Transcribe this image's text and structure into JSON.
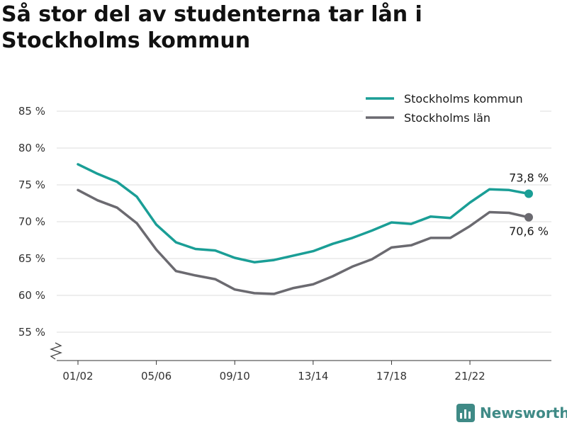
{
  "chart_data": {
    "type": "line",
    "title": "Så stor del av studenterna tar lån i Stockholms kommun",
    "xlabel": "",
    "ylabel": "",
    "ylim": [
      52,
      87
    ],
    "y_ticks": [
      55,
      60,
      65,
      70,
      75,
      80,
      85
    ],
    "y_tick_labels": [
      "55 %",
      "60 %",
      "65 %",
      "70 %",
      "75 %",
      "80 %",
      "85 %"
    ],
    "y_axis_break": true,
    "x_ticks": [
      "01/02",
      "05/06",
      "09/10",
      "13/14",
      "17/18",
      "21/22"
    ],
    "categories": [
      "01/02",
      "02/03",
      "03/04",
      "04/05",
      "05/06",
      "06/07",
      "07/08",
      "08/09",
      "09/10",
      "10/11",
      "11/12",
      "12/13",
      "13/14",
      "14/15",
      "15/16",
      "16/17",
      "17/18",
      "18/19",
      "19/20",
      "20/21",
      "21/22",
      "22/23",
      "23/24",
      "24/25"
    ],
    "grid": true,
    "legend_position": "top-right",
    "series": [
      {
        "name": "Stockholms kommun",
        "color": "#1a9e96",
        "values": [
          77.8,
          76.5,
          75.4,
          73.4,
          69.6,
          67.2,
          66.3,
          66.1,
          65.1,
          64.5,
          64.8,
          65.4,
          66.0,
          67.0,
          67.8,
          68.8,
          69.9,
          69.7,
          70.7,
          70.5,
          72.6,
          74.4,
          74.3,
          73.8
        ],
        "end_label": "73,8 %"
      },
      {
        "name": "Stockholms län",
        "color": "#6b6a70",
        "values": [
          74.3,
          72.9,
          71.9,
          69.8,
          66.2,
          63.3,
          62.7,
          62.2,
          60.8,
          60.3,
          60.2,
          61.0,
          61.5,
          62.6,
          63.9,
          64.9,
          66.5,
          66.8,
          67.8,
          67.8,
          69.4,
          71.3,
          71.2,
          70.6
        ],
        "end_label": "70,6 %"
      }
    ]
  },
  "brand": {
    "name": "Newsworthy"
  }
}
